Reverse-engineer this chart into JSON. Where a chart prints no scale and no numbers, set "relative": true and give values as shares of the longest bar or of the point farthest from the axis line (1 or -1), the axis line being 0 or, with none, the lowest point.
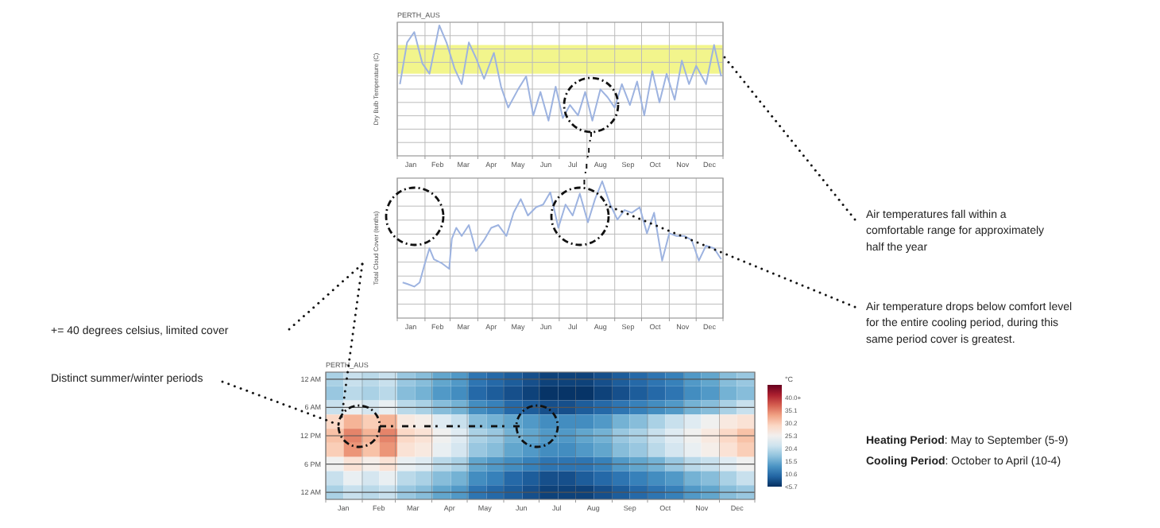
{
  "chart_data": [
    {
      "type": "line",
      "title": "PERTH_AUS",
      "ylabel": "Dry Bulb Temperature (C)",
      "relative": true,
      "grid": true,
      "color": "#9db3e0",
      "x": [
        "--01-04",
        "--01-12",
        "--01-20",
        "--01-29",
        "--02-06",
        "--02-17",
        "--02-25",
        "--03-06",
        "--03-14",
        "--03-22",
        "--03-30",
        "--04-08",
        "--04-19",
        "--04-27",
        "--05-05",
        "--05-16",
        "--05-25",
        "--06-02",
        "--06-10",
        "--06-19",
        "--06-27",
        "--07-05",
        "--07-13",
        "--07-22",
        "--07-30",
        "--08-07",
        "--08-16",
        "--08-24",
        "--09-01",
        "--09-09",
        "--09-18",
        "--09-26",
        "--10-04",
        "--10-13",
        "--10-21",
        "--10-29",
        "--11-07",
        "--11-15",
        "--11-23",
        "--12-01",
        "--12-12",
        "--12-21",
        "--12-29"
      ],
      "values": [
        0.55,
        0.87,
        0.95,
        0.71,
        0.63,
        1.0,
        0.87,
        0.67,
        0.55,
        0.87,
        0.75,
        0.59,
        0.79,
        0.53,
        0.37,
        0.51,
        0.61,
        0.31,
        0.49,
        0.27,
        0.53,
        0.29,
        0.39,
        0.31,
        0.49,
        0.27,
        0.51,
        0.45,
        0.37,
        0.55,
        0.39,
        0.57,
        0.31,
        0.65,
        0.41,
        0.63,
        0.43,
        0.73,
        0.55,
        0.69,
        0.55,
        0.85,
        0.61
      ],
      "xlim": [
        "--01-01",
        "--12-31"
      ],
      "xticks": [
        {
          "value": "--01-01",
          "label": null
        },
        {
          "value": "--01-16",
          "label": "Jan"
        },
        {
          "value": "--02-01",
          "label": null
        },
        {
          "value": "--02-15",
          "label": "Feb"
        },
        {
          "value": "--03-01",
          "label": null
        },
        {
          "value": "--03-16",
          "label": "Mar"
        },
        {
          "value": "--04-01",
          "label": null
        },
        {
          "value": "--04-16",
          "label": "Apr"
        },
        {
          "value": "--05-01",
          "label": null
        },
        {
          "value": "--05-16",
          "label": "May"
        },
        {
          "value": "--06-01",
          "label": null
        },
        {
          "value": "--06-16",
          "label": "Jun"
        },
        {
          "value": "--07-01",
          "label": null
        },
        {
          "value": "--07-16",
          "label": "Jul"
        },
        {
          "value": "--08-01",
          "label": null
        },
        {
          "value": "--08-16",
          "label": "Aug"
        },
        {
          "value": "--09-01",
          "label": null
        },
        {
          "value": "--09-16",
          "label": "Sep"
        },
        {
          "value": "--10-01",
          "label": null
        },
        {
          "value": "--10-16",
          "label": "Oct"
        },
        {
          "value": "--11-01",
          "label": null
        },
        {
          "value": "--11-16",
          "label": "Nov"
        },
        {
          "value": "--12-01",
          "label": null
        },
        {
          "value": "--12-16",
          "label": "Dec"
        },
        {
          "value": "--12-31",
          "label": null
        }
      ],
      "bands": [
        {
          "axis": "y",
          "from": 0.63,
          "to": 0.85,
          "color": "#eef266"
        }
      ],
      "annotations": [
        "Air temperatures fall within a comfortable range for approximately half the year"
      ]
    },
    {
      "type": "line",
      "ylabel": "Total Cloud Cover (tenths)",
      "relative": true,
      "grid": true,
      "color": "#9db3e0",
      "x": [
        "--01-07",
        "--01-12",
        "--01-20",
        "--01-26",
        "--01-31",
        "--02-06",
        "--02-11",
        "--02-20",
        "--02-28",
        "--03-03",
        "--03-08",
        "--03-14",
        "--03-22",
        "--03-30",
        "--04-08",
        "--04-16",
        "--04-24",
        "--05-03",
        "--05-11",
        "--05-19",
        "--05-27",
        "--06-05",
        "--06-13",
        "--06-21",
        "--06-30",
        "--07-08",
        "--07-16",
        "--07-24",
        "--08-02",
        "--08-10",
        "--08-18",
        "--08-27",
        "--09-04",
        "--09-12",
        "--09-20",
        "--09-29",
        "--10-07",
        "--10-15",
        "--10-24",
        "--11-01",
        "--11-09",
        "--11-18",
        "--11-26",
        "--12-04",
        "--12-12",
        "--12-21",
        "--12-29"
      ],
      "values": [
        0.26,
        0.25,
        0.23,
        0.26,
        0.38,
        0.51,
        0.43,
        0.4,
        0.36,
        0.58,
        0.66,
        0.6,
        0.68,
        0.49,
        0.57,
        0.66,
        0.68,
        0.6,
        0.77,
        0.87,
        0.75,
        0.81,
        0.83,
        0.92,
        0.66,
        0.83,
        0.75,
        0.91,
        0.7,
        0.87,
        1.0,
        0.83,
        0.72,
        0.79,
        0.77,
        0.81,
        0.62,
        0.77,
        0.42,
        0.62,
        0.6,
        0.6,
        0.57,
        0.42,
        0.53,
        0.51,
        0.43
      ],
      "xlim": [
        "--01-01",
        "--12-31"
      ],
      "xticks": [
        {
          "value": "--01-01",
          "label": null
        },
        {
          "value": "--01-16",
          "label": "Jan"
        },
        {
          "value": "--02-01",
          "label": null
        },
        {
          "value": "--02-15",
          "label": "Feb"
        },
        {
          "value": "--03-01",
          "label": null
        },
        {
          "value": "--03-16",
          "label": "Mar"
        },
        {
          "value": "--04-01",
          "label": null
        },
        {
          "value": "--04-16",
          "label": "Apr"
        },
        {
          "value": "--05-01",
          "label": null
        },
        {
          "value": "--05-16",
          "label": "May"
        },
        {
          "value": "--06-01",
          "label": null
        },
        {
          "value": "--06-16",
          "label": "Jun"
        },
        {
          "value": "--07-01",
          "label": null
        },
        {
          "value": "--07-16",
          "label": "Jul"
        },
        {
          "value": "--08-01",
          "label": null
        },
        {
          "value": "--08-16",
          "label": "Aug"
        },
        {
          "value": "--09-01",
          "label": null
        },
        {
          "value": "--09-16",
          "label": "Sep"
        },
        {
          "value": "--10-01",
          "label": null
        },
        {
          "value": "--10-16",
          "label": "Oct"
        },
        {
          "value": "--11-01",
          "label": null
        },
        {
          "value": "--11-16",
          "label": "Nov"
        },
        {
          "value": "--12-01",
          "label": null
        },
        {
          "value": "--12-16",
          "label": "Dec"
        },
        {
          "value": "--12-31",
          "label": null
        }
      ],
      "annotations": [
        "Air temperature drops below comfort level for the entire cooling period, during this same period cover is greatest.",
        "+= 40 degrees celsius, limited cover"
      ]
    },
    {
      "type": "heatmap",
      "title": "PERTH_AUS",
      "clabel": "°C",
      "grid": true,
      "xlim": [
        "--01-01",
        "--12-31"
      ],
      "xticks": [
        {
          "value": "--01-01",
          "label": null
        },
        {
          "value": "--01-16",
          "label": "Jan"
        },
        {
          "value": "--02-01",
          "label": null
        },
        {
          "value": "--02-15",
          "label": "Feb"
        },
        {
          "value": "--03-01",
          "label": null
        },
        {
          "value": "--03-16",
          "label": "Mar"
        },
        {
          "value": "--04-01",
          "label": null
        },
        {
          "value": "--04-16",
          "label": "Apr"
        },
        {
          "value": "--05-01",
          "label": null
        },
        {
          "value": "--05-16",
          "label": "May"
        },
        {
          "value": "--06-01",
          "label": null
        },
        {
          "value": "--06-16",
          "label": "Jun"
        },
        {
          "value": "--07-01",
          "label": null
        },
        {
          "value": "--07-16",
          "label": "Jul"
        },
        {
          "value": "--08-01",
          "label": null
        },
        {
          "value": "--08-16",
          "label": "Aug"
        },
        {
          "value": "--09-01",
          "label": null
        },
        {
          "value": "--09-16",
          "label": "Sep"
        },
        {
          "value": "--10-01",
          "label": null
        },
        {
          "value": "--10-16",
          "label": "Oct"
        },
        {
          "value": "--11-01",
          "label": null
        },
        {
          "value": "--11-16",
          "label": "Nov"
        },
        {
          "value": "--12-01",
          "label": null
        },
        {
          "value": "--12-16",
          "label": "Dec"
        },
        {
          "value": "--12-31",
          "label": null
        }
      ],
      "y_categories": [
        "12 AM",
        null,
        "6 AM",
        null,
        "12 PM",
        null,
        "6 PM",
        null,
        "12 AM"
      ],
      "clim": [
        5.7,
        44.9
      ],
      "cticks": [
        {
          "value": 5.7,
          "label": "<5.7"
        },
        10.6,
        15.5,
        20.4,
        25.3,
        30.2,
        35.1,
        {
          "value": 40,
          "label": "40.0+"
        }
      ],
      "cells": [
        [
          19,
          21,
          20,
          21,
          18,
          17,
          15,
          14,
          11,
          10,
          9,
          8,
          7,
          7,
          7,
          8,
          9,
          10,
          11,
          12,
          14,
          15,
          17,
          18
        ],
        [
          18,
          20,
          19,
          20,
          17,
          16,
          14,
          13,
          10,
          9,
          8,
          7,
          6,
          6,
          6,
          7,
          8,
          9,
          10,
          11,
          13,
          14,
          16,
          17
        ],
        [
          21,
          24,
          22,
          24,
          20,
          19,
          17,
          16,
          13,
          12,
          10,
          9,
          8,
          8,
          9,
          10,
          11,
          12,
          13,
          14,
          16,
          17,
          19,
          21
        ],
        [
          29,
          32,
          30,
          32,
          27,
          26,
          23,
          21,
          17,
          16,
          15,
          14,
          13,
          13,
          13,
          14,
          16,
          17,
          19,
          21,
          23,
          25,
          27,
          28
        ],
        [
          31,
          35,
          32,
          35,
          29,
          28,
          25,
          23,
          19,
          18,
          16,
          15,
          14,
          14,
          15,
          16,
          18,
          19,
          21,
          23,
          25,
          27,
          29,
          31
        ],
        [
          30,
          34,
          31,
          34,
          28,
          27,
          24,
          22,
          18,
          17,
          15,
          14,
          13,
          13,
          14,
          15,
          17,
          18,
          20,
          22,
          24,
          26,
          28,
          30
        ],
        [
          25,
          28,
          26,
          28,
          24,
          23,
          20,
          19,
          15,
          14,
          13,
          12,
          11,
          11,
          11,
          12,
          14,
          15,
          16,
          18,
          20,
          21,
          23,
          25
        ],
        [
          21,
          24,
          22,
          24,
          20,
          19,
          17,
          16,
          13,
          12,
          10,
          9,
          8,
          8,
          9,
          10,
          11,
          12,
          13,
          14,
          16,
          17,
          19,
          21
        ],
        [
          19,
          21,
          20,
          21,
          18,
          17,
          15,
          14,
          11,
          10,
          9,
          8,
          7,
          7,
          7,
          8,
          9,
          10,
          11,
          12,
          14,
          15,
          17,
          18
        ]
      ],
      "annotations": [
        "Distinct summer/winter periods",
        "Heating Period: May to September (5-9)",
        "Cooling Period: October to April (10-4)"
      ]
    }
  ]
}
